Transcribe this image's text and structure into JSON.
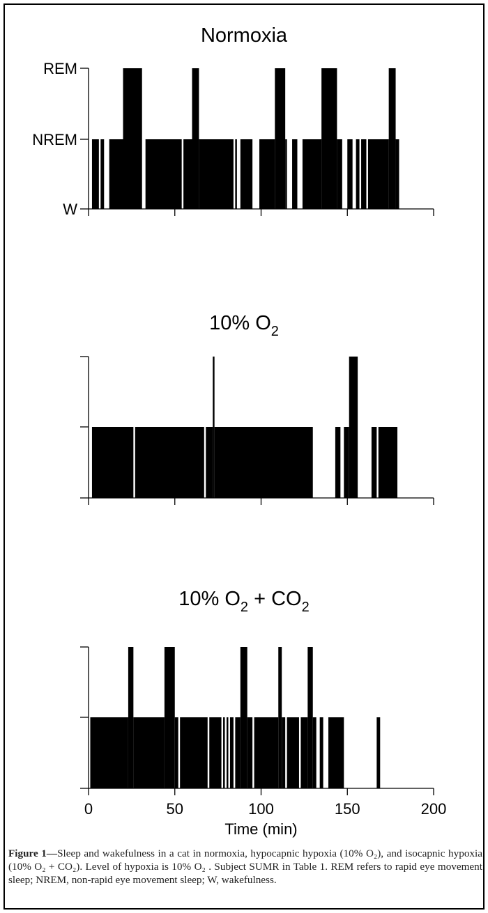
{
  "chart_data": [
    {
      "type": "bar",
      "title": "Normoxia",
      "xlim": [
        0,
        200
      ],
      "ylevels": [
        "W",
        "NREM",
        "REM"
      ],
      "ytick_labels": [
        "REM",
        "NREM",
        "W"
      ],
      "xticks": [
        0,
        50,
        100,
        150,
        200
      ],
      "x_tick_labels_shown": false,
      "segments": [
        {
          "start": 2,
          "end": 6,
          "state": "NREM"
        },
        {
          "start": 7,
          "end": 9,
          "state": "NREM"
        },
        {
          "start": 12,
          "end": 20,
          "state": "NREM"
        },
        {
          "start": 20,
          "end": 31,
          "state": "REM"
        },
        {
          "start": 33,
          "end": 54,
          "state": "NREM"
        },
        {
          "start": 55,
          "end": 60,
          "state": "NREM"
        },
        {
          "start": 60,
          "end": 64,
          "state": "REM"
        },
        {
          "start": 64,
          "end": 84,
          "state": "NREM"
        },
        {
          "start": 85,
          "end": 86,
          "state": "NREM"
        },
        {
          "start": 88,
          "end": 95,
          "state": "NREM"
        },
        {
          "start": 99,
          "end": 108,
          "state": "NREM"
        },
        {
          "start": 108,
          "end": 114,
          "state": "REM"
        },
        {
          "start": 114,
          "end": 115,
          "state": "NREM"
        },
        {
          "start": 118,
          "end": 121,
          "state": "NREM"
        },
        {
          "start": 124,
          "end": 135,
          "state": "NREM"
        },
        {
          "start": 135,
          "end": 144,
          "state": "REM"
        },
        {
          "start": 144,
          "end": 147,
          "state": "NREM"
        },
        {
          "start": 150,
          "end": 153,
          "state": "NREM"
        },
        {
          "start": 155,
          "end": 157,
          "state": "NREM"
        },
        {
          "start": 158,
          "end": 161,
          "state": "NREM"
        },
        {
          "start": 162,
          "end": 174,
          "state": "NREM"
        },
        {
          "start": 174,
          "end": 178,
          "state": "REM"
        },
        {
          "start": 178,
          "end": 180,
          "state": "NREM"
        }
      ]
    },
    {
      "type": "bar",
      "title": "10% O",
      "title_sub": "2",
      "title_tail": "",
      "xlim": [
        0,
        200
      ],
      "ylevels": [
        "W",
        "NREM",
        "REM"
      ],
      "ytick_labels": [
        "",
        "",
        ""
      ],
      "xticks": [
        0,
        50,
        100,
        150,
        200
      ],
      "x_tick_labels_shown": false,
      "segments": [
        {
          "start": 2,
          "end": 26,
          "state": "NREM"
        },
        {
          "start": 27,
          "end": 67,
          "state": "NREM"
        },
        {
          "start": 68,
          "end": 72,
          "state": "NREM"
        },
        {
          "start": 72,
          "end": 73,
          "state": "REM"
        },
        {
          "start": 73,
          "end": 130,
          "state": "NREM"
        },
        {
          "start": 143,
          "end": 146,
          "state": "NREM"
        },
        {
          "start": 148,
          "end": 151,
          "state": "NREM"
        },
        {
          "start": 151,
          "end": 156,
          "state": "REM"
        },
        {
          "start": 164,
          "end": 167,
          "state": "NREM"
        },
        {
          "start": 168,
          "end": 179,
          "state": "NREM"
        }
      ]
    },
    {
      "type": "bar",
      "title": "10% O",
      "title_sub": "2",
      "title_tail": " + CO",
      "title_sub2": "2",
      "xlim": [
        0,
        200
      ],
      "ylevels": [
        "W",
        "NREM",
        "REM"
      ],
      "ytick_labels": [
        "",
        "",
        ""
      ],
      "xticks": [
        0,
        50,
        100,
        150,
        200
      ],
      "x_tick_labels": [
        "0",
        "50",
        "100",
        "150",
        "200"
      ],
      "x_tick_labels_shown": true,
      "xlabel": "Time (min)",
      "segments": [
        {
          "start": 1,
          "end": 23,
          "state": "NREM"
        },
        {
          "start": 23,
          "end": 26,
          "state": "REM"
        },
        {
          "start": 26,
          "end": 44,
          "state": "NREM"
        },
        {
          "start": 44,
          "end": 50,
          "state": "REM"
        },
        {
          "start": 50,
          "end": 52,
          "state": "NREM"
        },
        {
          "start": 53,
          "end": 69,
          "state": "NREM"
        },
        {
          "start": 70,
          "end": 77,
          "state": "NREM"
        },
        {
          "start": 78,
          "end": 79,
          "state": "NREM"
        },
        {
          "start": 80,
          "end": 81,
          "state": "NREM"
        },
        {
          "start": 82,
          "end": 84,
          "state": "NREM"
        },
        {
          "start": 85,
          "end": 88,
          "state": "NREM"
        },
        {
          "start": 88,
          "end": 92,
          "state": "REM"
        },
        {
          "start": 92,
          "end": 95,
          "state": "NREM"
        },
        {
          "start": 96,
          "end": 110,
          "state": "NREM"
        },
        {
          "start": 110,
          "end": 112,
          "state": "REM"
        },
        {
          "start": 112,
          "end": 114,
          "state": "NREM"
        },
        {
          "start": 115,
          "end": 122,
          "state": "NREM"
        },
        {
          "start": 123,
          "end": 127,
          "state": "NREM"
        },
        {
          "start": 127,
          "end": 130,
          "state": "REM"
        },
        {
          "start": 130,
          "end": 132,
          "state": "NREM"
        },
        {
          "start": 134,
          "end": 136,
          "state": "NREM"
        },
        {
          "start": 139,
          "end": 148,
          "state": "NREM"
        },
        {
          "start": 167,
          "end": 169,
          "state": "NREM"
        }
      ]
    }
  ],
  "caption": {
    "lead": "Figure 1",
    "dash": "—",
    "text": "Sleep and wakefulness in a cat in normoxia, hypocapnic hypoxia (10% O₂), and isocapnic hypoxia (10% O₂ + CO₂). Level of hypoxia is 10% O₂ . Subject SUMR in Table 1. REM refers to rapid eye movement sleep; NREM, non-rapid eye movement sleep; W, wakefulness."
  },
  "colors": {
    "bars": "#000000",
    "axes": "#000000",
    "background": "#ffffff",
    "caption_text": "#222222"
  }
}
